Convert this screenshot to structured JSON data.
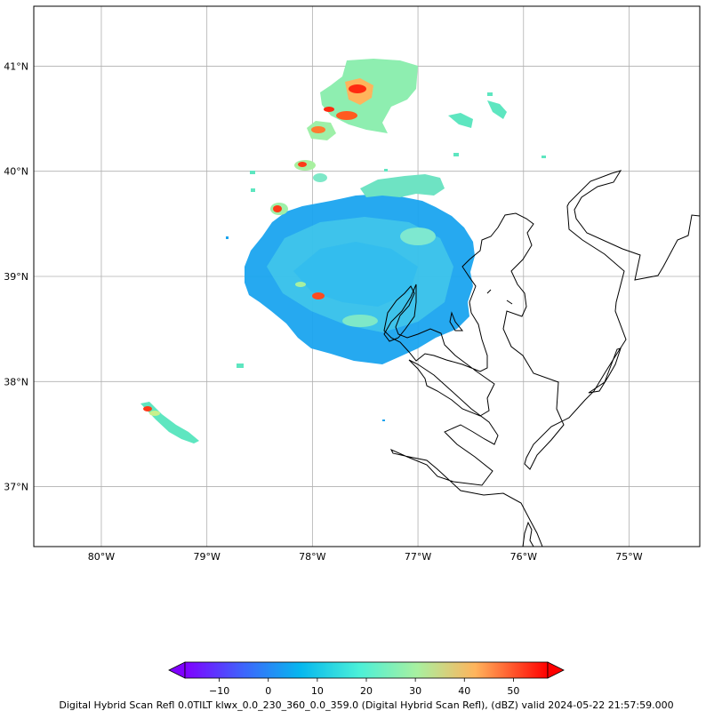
{
  "map": {
    "lon_range": [
      -80.64,
      -74.33
    ],
    "lat_range": [
      36.43,
      41.57
    ],
    "lon_ticks": [
      {
        "value": -80,
        "label": "80°W"
      },
      {
        "value": -79,
        "label": "79°W"
      },
      {
        "value": -78,
        "label": "78°W"
      },
      {
        "value": -77,
        "label": "77°W"
      },
      {
        "value": -76,
        "label": "76°W"
      },
      {
        "value": -75,
        "label": "75°W"
      }
    ],
    "lat_ticks": [
      {
        "value": 41,
        "label": "41°N"
      },
      {
        "value": 40,
        "label": "40°N"
      },
      {
        "value": 39,
        "label": "39°N"
      },
      {
        "value": 38,
        "label": "38°N"
      },
      {
        "value": 37,
        "label": "37°N"
      }
    ],
    "grid": true
  },
  "colorbar": {
    "min": -17,
    "max": 57,
    "extend": "both",
    "colormap": "rainbow",
    "ticks": [
      {
        "value": -10,
        "label": "−10"
      },
      {
        "value": 0,
        "label": "0"
      },
      {
        "value": 10,
        "label": "10"
      },
      {
        "value": 20,
        "label": "20"
      },
      {
        "value": 30,
        "label": "30"
      },
      {
        "value": 40,
        "label": "40"
      },
      {
        "value": 50,
        "label": "50"
      }
    ]
  },
  "caption": "Digital Hybrid Scan Refl 0.0TILT klwx_0.0_230_360_0.0_359.0 (Digital Hybrid Scan Refl), (dBZ) valid 2024-05-22 21:57:59.000",
  "colors": {
    "coastline": "#000000",
    "grid": "#b0b0b0",
    "frame": "#000000",
    "low_dbz": "#1aa0ee",
    "mid_dbz": "#5ee6c0",
    "high_dbz": "#ff2a10"
  }
}
